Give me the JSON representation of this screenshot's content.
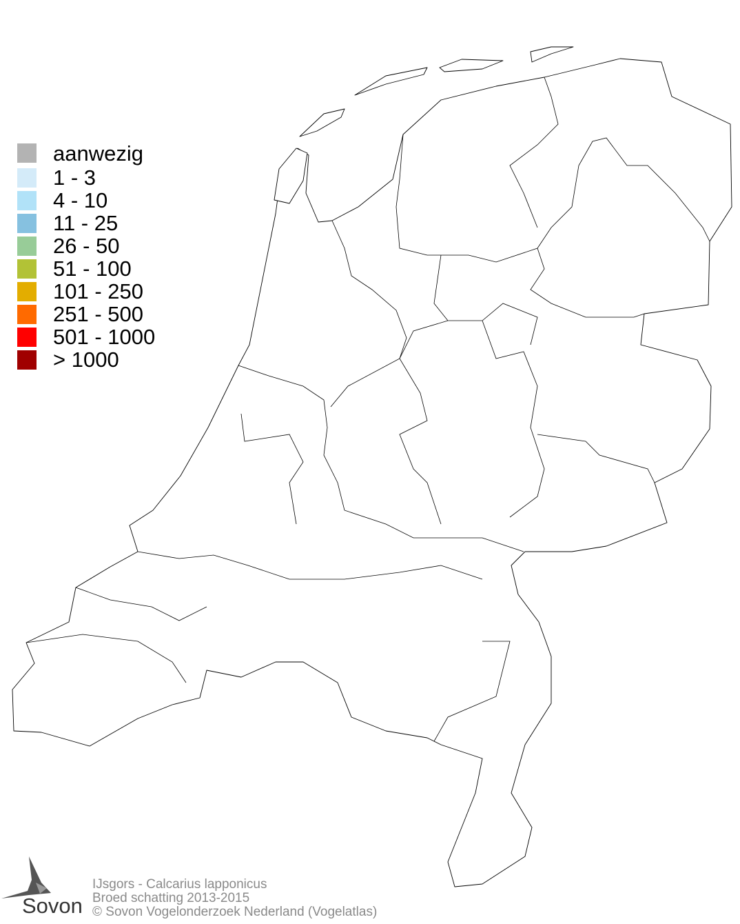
{
  "legend": {
    "items": [
      {
        "label": "aanwezig",
        "color": "#b3b3b3"
      },
      {
        "label": "1 - 3",
        "color": "#d4ebf9"
      },
      {
        "label": "4 - 10",
        "color": "#b1e2f8"
      },
      {
        "label": "11 - 25",
        "color": "#86c1e0"
      },
      {
        "label": "26 - 50",
        "color": "#98cc98"
      },
      {
        "label": "51 - 100",
        "color": "#b2c236"
      },
      {
        "label": "101 - 250",
        "color": "#e3ad00"
      },
      {
        "label": "251 - 500",
        "color": "#ff6a00"
      },
      {
        "label": "501 - 1000",
        "color": "#ff0000"
      },
      {
        "label": "> 1000",
        "color": "#a00000"
      }
    ]
  },
  "footer": {
    "species": "IJsgors - Calcarius lapponicus",
    "subtitle": "Broed schatting 2013-2015",
    "copyright": "© Sovon Vogelonderzoek Nederland (Vogelatlas)"
  },
  "logo": {
    "text": "Sovon"
  },
  "map": {
    "region": "Netherlands",
    "filled_regions": 0
  }
}
